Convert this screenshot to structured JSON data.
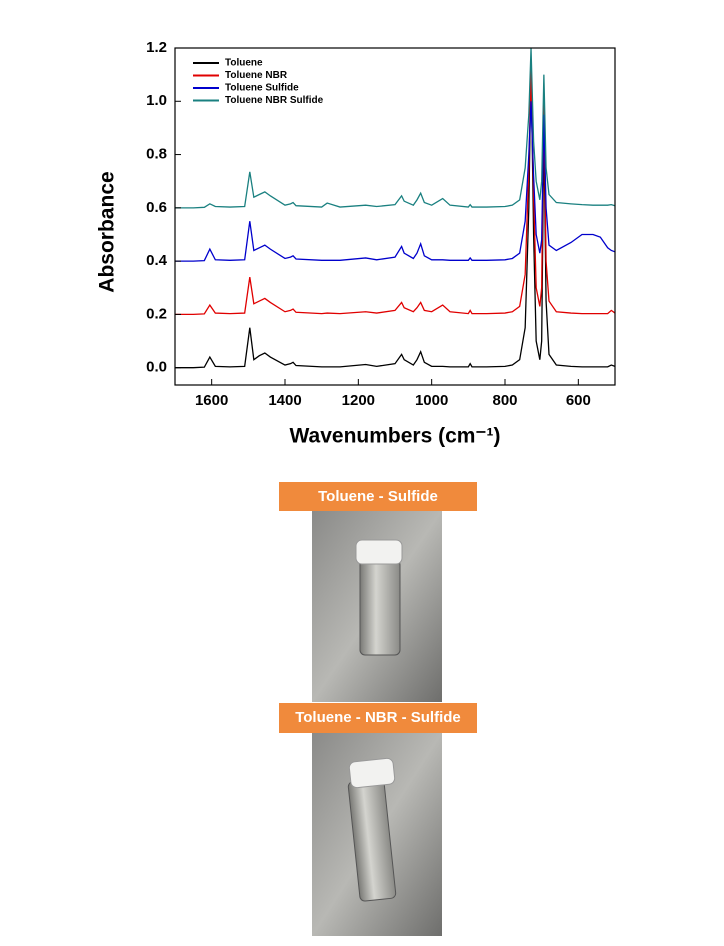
{
  "chart_data": {
    "type": "line",
    "ylabel": "Absorbance",
    "xlabel": "Wavenumbers (cm⁻¹)",
    "x": [
      1700,
      1650,
      1620,
      1605,
      1590,
      1550,
      1510,
      1496,
      1485,
      1470,
      1455,
      1440,
      1400,
      1385,
      1378,
      1370,
      1300,
      1285,
      1250,
      1180,
      1150,
      1100,
      1082,
      1075,
      1050,
      1040,
      1030,
      1020,
      1000,
      970,
      950,
      900,
      895,
      890,
      850,
      800,
      780,
      760,
      745,
      735,
      729,
      722,
      715,
      705,
      700,
      694,
      688,
      680,
      660,
      620,
      590,
      560,
      540,
      520,
      510,
      500
    ],
    "xlim": [
      1700,
      500
    ],
    "xticks": [
      1600,
      1400,
      1200,
      1000,
      800,
      600
    ],
    "ylim": [
      -0.065,
      1.2
    ],
    "yticks": [
      {
        "value": 0,
        "label": "0.0"
      },
      0.2,
      0.4,
      0.6,
      0.8,
      {
        "value": 1,
        "label": "1.0"
      },
      1.2
    ],
    "legend": "upper left",
    "series": [
      {
        "name": "Toluene",
        "color": "#000000",
        "values": [
          0,
          0,
          0.002,
          0.04,
          0.005,
          0.003,
          0.005,
          0.15,
          0.03,
          0.045,
          0.055,
          0.04,
          0.01,
          0.015,
          0.02,
          0.008,
          0.003,
          0.003,
          0.003,
          0.012,
          0.005,
          0.015,
          0.05,
          0.03,
          0.01,
          0.03,
          0.06,
          0.02,
          0.005,
          0.005,
          0.003,
          0.003,
          0.015,
          0.003,
          0.003,
          0.005,
          0.01,
          0.03,
          0.15,
          0.6,
          1.14,
          0.5,
          0.1,
          0.03,
          0.1,
          0.9,
          0.25,
          0.05,
          0.01,
          0.005,
          0.003,
          0.003,
          0.003,
          0.003,
          0.01,
          0.005
        ]
      },
      {
        "name": "Toluene NBR",
        "color": "#e00000",
        "values": [
          0.2,
          0.2,
          0.202,
          0.235,
          0.205,
          0.203,
          0.205,
          0.34,
          0.24,
          0.25,
          0.26,
          0.245,
          0.21,
          0.215,
          0.22,
          0.208,
          0.203,
          0.205,
          0.203,
          0.21,
          0.205,
          0.215,
          0.245,
          0.225,
          0.21,
          0.225,
          0.245,
          0.215,
          0.21,
          0.235,
          0.21,
          0.203,
          0.215,
          0.203,
          0.203,
          0.205,
          0.21,
          0.23,
          0.35,
          0.75,
          1.12,
          0.65,
          0.3,
          0.23,
          0.3,
          1.0,
          0.4,
          0.25,
          0.21,
          0.205,
          0.203,
          0.203,
          0.203,
          0.203,
          0.215,
          0.205
        ]
      },
      {
        "name": "Toluene Sulfide",
        "color": "#0000cc",
        "values": [
          0.4,
          0.4,
          0.402,
          0.445,
          0.405,
          0.403,
          0.405,
          0.55,
          0.44,
          0.45,
          0.46,
          0.445,
          0.41,
          0.415,
          0.42,
          0.408,
          0.403,
          0.403,
          0.403,
          0.412,
          0.405,
          0.415,
          0.455,
          0.43,
          0.41,
          0.43,
          0.465,
          0.42,
          0.405,
          0.405,
          0.403,
          0.403,
          0.412,
          0.403,
          0.403,
          0.405,
          0.41,
          0.43,
          0.55,
          0.8,
          1.0,
          0.72,
          0.5,
          0.43,
          0.48,
          0.95,
          0.6,
          0.46,
          0.44,
          0.47,
          0.5,
          0.5,
          0.49,
          0.45,
          0.44,
          0.435
        ]
      },
      {
        "name": "Toluene NBR Sulfide",
        "color": "#1a8080",
        "values": [
          0.6,
          0.6,
          0.602,
          0.615,
          0.605,
          0.603,
          0.605,
          0.735,
          0.64,
          0.65,
          0.66,
          0.645,
          0.61,
          0.615,
          0.62,
          0.608,
          0.603,
          0.618,
          0.603,
          0.61,
          0.605,
          0.612,
          0.645,
          0.625,
          0.61,
          0.63,
          0.655,
          0.62,
          0.61,
          0.635,
          0.61,
          0.603,
          0.612,
          0.603,
          0.603,
          0.605,
          0.61,
          0.63,
          0.75,
          0.95,
          1.2,
          0.85,
          0.7,
          0.63,
          0.7,
          1.1,
          0.75,
          0.65,
          0.62,
          0.615,
          0.612,
          0.61,
          0.61,
          0.61,
          0.612,
          0.608
        ]
      }
    ]
  },
  "photos": [
    {
      "label": "Toluene - Sulfide"
    },
    {
      "label": "Toluene - NBR - Sulfide"
    }
  ]
}
